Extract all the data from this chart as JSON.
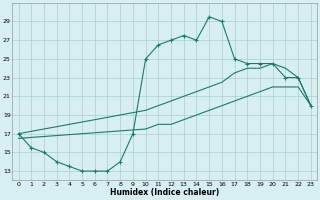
{
  "line1_x": [
    0,
    1,
    2,
    3,
    4,
    5,
    6,
    7,
    8,
    9,
    10,
    11,
    12,
    13,
    14,
    15,
    16,
    17,
    18,
    19,
    20,
    21,
    22,
    23
  ],
  "line1_y": [
    17,
    15.5,
    15,
    14,
    13.5,
    13,
    13,
    13,
    14,
    17,
    25,
    26.5,
    27,
    27.5,
    27,
    29.5,
    29,
    25,
    24.5,
    24.5,
    24.5,
    23,
    23,
    20
  ],
  "line2_x": [
    0,
    10,
    11,
    12,
    13,
    14,
    15,
    16,
    17,
    18,
    19,
    20,
    21,
    22,
    23
  ],
  "line2_y": [
    17,
    19.5,
    20,
    20.5,
    21,
    21.5,
    22,
    22.5,
    23.5,
    24,
    24,
    24.5,
    24,
    23,
    20
  ],
  "line3_x": [
    0,
    10,
    11,
    12,
    13,
    14,
    15,
    16,
    17,
    18,
    19,
    20,
    21,
    22,
    23
  ],
  "line3_y": [
    16.5,
    17.5,
    18,
    18,
    18.5,
    19,
    19.5,
    20,
    20.5,
    21,
    21.5,
    22,
    22,
    22,
    20
  ],
  "line_color": "#1a7a6e",
  "bg_color": "#d7eff0",
  "grid_color": "#aacfd0",
  "xlabel": "Humidex (Indice chaleur)",
  "ylim": [
    12,
    31
  ],
  "xlim": [
    -0.5,
    23.5
  ],
  "yticks": [
    13,
    15,
    17,
    19,
    21,
    23,
    25,
    27,
    29
  ],
  "xticks": [
    0,
    1,
    2,
    3,
    4,
    5,
    6,
    7,
    8,
    9,
    10,
    11,
    12,
    13,
    14,
    15,
    16,
    17,
    18,
    19,
    20,
    21,
    22,
    23
  ]
}
